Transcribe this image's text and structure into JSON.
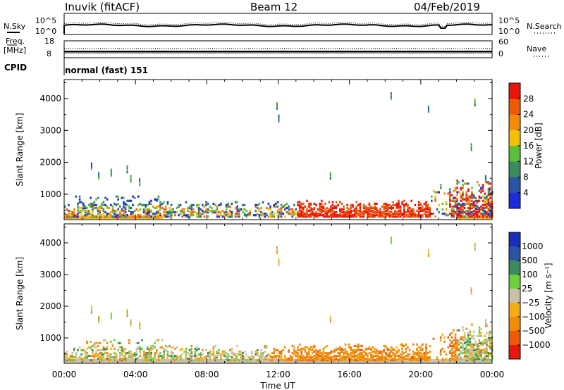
{
  "header": {
    "station": "Inuvik (fitACF)",
    "beam": "Beam 12",
    "date": "04/Feb/2019"
  },
  "top_panels": {
    "nsky_label": "N.Sky",
    "nsky_ticks": [
      "10^5",
      "10^0"
    ],
    "nsearch_label": "N.Search",
    "nsearch_ticks": [
      "10^5",
      "10^0"
    ],
    "freq_label": "Freq.",
    "freq_unit": "[MHz]",
    "freq_ticks": [
      "18",
      "8"
    ],
    "nave_label": "Nave",
    "nave_ticks": [
      "60",
      "0"
    ],
    "cpid_label": "CPID",
    "cpid_text": "normal (fast) 151"
  },
  "colors": {
    "power": [
      "#1e2bd8",
      "#2a55a6",
      "#3d8a5e",
      "#5bbf3a",
      "#f2c00a",
      "#f28a0a",
      "#ef5a0a",
      "#e8160c"
    ],
    "velocity": [
      "#e8160c",
      "#ef5a0a",
      "#f28a0a",
      "#f5ab14",
      "#c8c0a8",
      "#6fcf3a",
      "#3d8a5e",
      "#2a55a6",
      "#1a2fb8"
    ]
  },
  "chart_data": [
    {
      "type": "heatmap",
      "name": "power",
      "ylabel": "Slant Range [km]",
      "yticks": [
        "1000",
        "2000",
        "3000",
        "4000"
      ],
      "ylim": [
        200,
        4600
      ],
      "xlim": [
        0,
        24
      ],
      "colorbar_label": "Power [dB]",
      "colorbar_ticks": [
        "4",
        "8",
        "12",
        "16",
        "20",
        "24",
        "28"
      ],
      "colorbar_range": [
        0,
        32
      ]
    },
    {
      "type": "heatmap",
      "name": "velocity",
      "ylabel": "Slant Range [km]",
      "yticks": [
        "1000",
        "2000",
        "3000",
        "4000"
      ],
      "ylim": [
        200,
        4600
      ],
      "xlim": [
        0,
        24
      ],
      "colorbar_label": "Velocity [m s⁻¹]",
      "colorbar_ticks": [
        "1000",
        "500",
        "100",
        "25",
        "-25",
        "-100",
        "-500",
        "-1000"
      ]
    }
  ],
  "xaxis": {
    "ticks": [
      "00:00",
      "04:00",
      "08:00",
      "12:00",
      "16:00",
      "20:00",
      "00:00"
    ],
    "label": "Time UT"
  }
}
